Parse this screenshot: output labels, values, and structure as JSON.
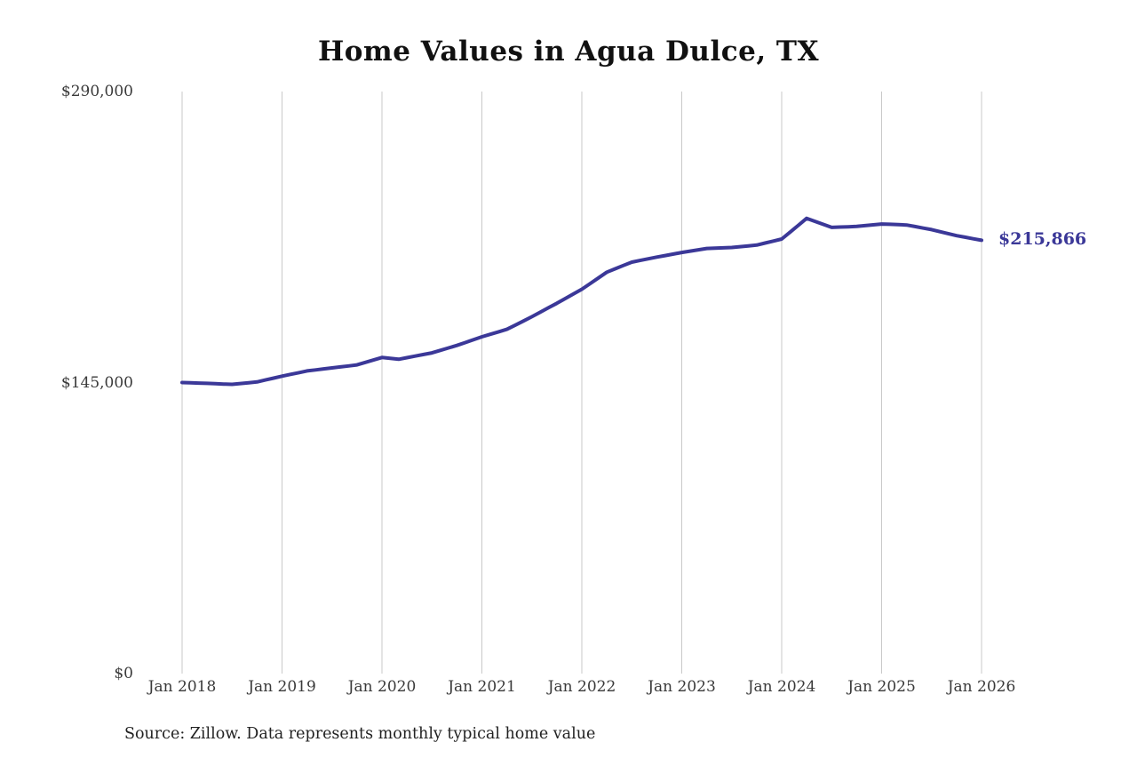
{
  "chart_data": {
    "type": "line",
    "title": "Home Values in Agua Dulce, TX",
    "xlabel": "",
    "ylabel": "",
    "ylim": [
      0,
      290000
    ],
    "y_ticks": [
      0,
      145000,
      290000
    ],
    "y_tick_labels": [
      "$0",
      "$145,000",
      "$290,000"
    ],
    "x_tick_labels": [
      "Jan 2018",
      "Jan 2019",
      "Jan 2020",
      "Jan 2021",
      "Jan 2022",
      "Jan 2023",
      "Jan 2024",
      "Jan 2025",
      "Jan 2026"
    ],
    "x_interval": "monthly",
    "x": [
      "2018-01",
      "2018-02",
      "2018-03",
      "2018-04",
      "2018-05",
      "2018-06",
      "2018-07",
      "2018-08",
      "2018-09",
      "2018-10",
      "2018-11",
      "2018-12",
      "2019-01",
      "2019-02",
      "2019-03",
      "2019-04",
      "2019-05",
      "2019-06",
      "2019-07",
      "2019-08",
      "2019-09",
      "2019-10",
      "2019-11",
      "2019-12",
      "2020-01",
      "2020-02",
      "2020-03",
      "2020-04",
      "2020-05",
      "2020-06",
      "2020-07",
      "2020-08",
      "2020-09",
      "2020-10",
      "2020-11",
      "2020-12",
      "2021-01",
      "2021-02",
      "2021-03",
      "2021-04",
      "2021-05",
      "2021-06",
      "2021-07",
      "2021-08",
      "2021-09",
      "2021-10",
      "2021-11",
      "2021-12",
      "2022-01",
      "2022-02",
      "2022-03",
      "2022-04",
      "2022-05",
      "2022-06",
      "2022-07",
      "2022-08",
      "2022-09",
      "2022-10",
      "2022-11",
      "2022-12",
      "2023-01",
      "2023-02",
      "2023-03",
      "2023-04",
      "2023-05",
      "2023-06",
      "2023-07",
      "2023-08",
      "2023-09",
      "2023-10",
      "2023-11",
      "2023-12",
      "2024-01",
      "2024-02",
      "2024-03",
      "2024-04",
      "2024-05",
      "2024-06",
      "2024-07",
      "2024-08",
      "2024-09",
      "2024-10",
      "2024-11",
      "2024-12",
      "2025-01",
      "2025-02",
      "2025-03",
      "2025-04",
      "2025-05",
      "2025-06",
      "2025-07",
      "2025-08",
      "2025-09",
      "2025-10",
      "2025-11",
      "2025-12",
      "2026-01"
    ],
    "values": [
      145000,
      144867,
      144733,
      144600,
      144433,
      144267,
      144100,
      144500,
      144900,
      145300,
      146267,
      147233,
      148200,
      149067,
      149933,
      150800,
      151300,
      151800,
      152300,
      152800,
      153300,
      153800,
      155033,
      156267,
      157500,
      157050,
      156600,
      157400,
      158200,
      159000,
      159800,
      161033,
      162267,
      163500,
      164933,
      166367,
      167800,
      169033,
      170267,
      171500,
      173600,
      175700,
      177800,
      180033,
      182267,
      184500,
      186833,
      189167,
      191500,
      194333,
      197167,
      200000,
      201667,
      203333,
      205000,
      205833,
      206667,
      207500,
      208267,
      209033,
      209800,
      210467,
      211133,
      211800,
      211967,
      212133,
      212300,
      212700,
      213100,
      213500,
      214500,
      215500,
      216500,
      219933,
      223367,
      226800,
      225300,
      223800,
      222300,
      222467,
      222633,
      222800,
      223200,
      223600,
      224000,
      223833,
      223667,
      223500,
      222733,
      221967,
      221200,
      220200,
      219200,
      218200,
      217422,
      216644,
      215866
    ],
    "end_label": "$215,866",
    "last_value": 215866,
    "source_note": "Source: Zillow. Data represents monthly typical home value",
    "line_color": "#3b3898",
    "grid_color": "#c9c9c9",
    "legend": "none",
    "grid": "vertical-only"
  }
}
